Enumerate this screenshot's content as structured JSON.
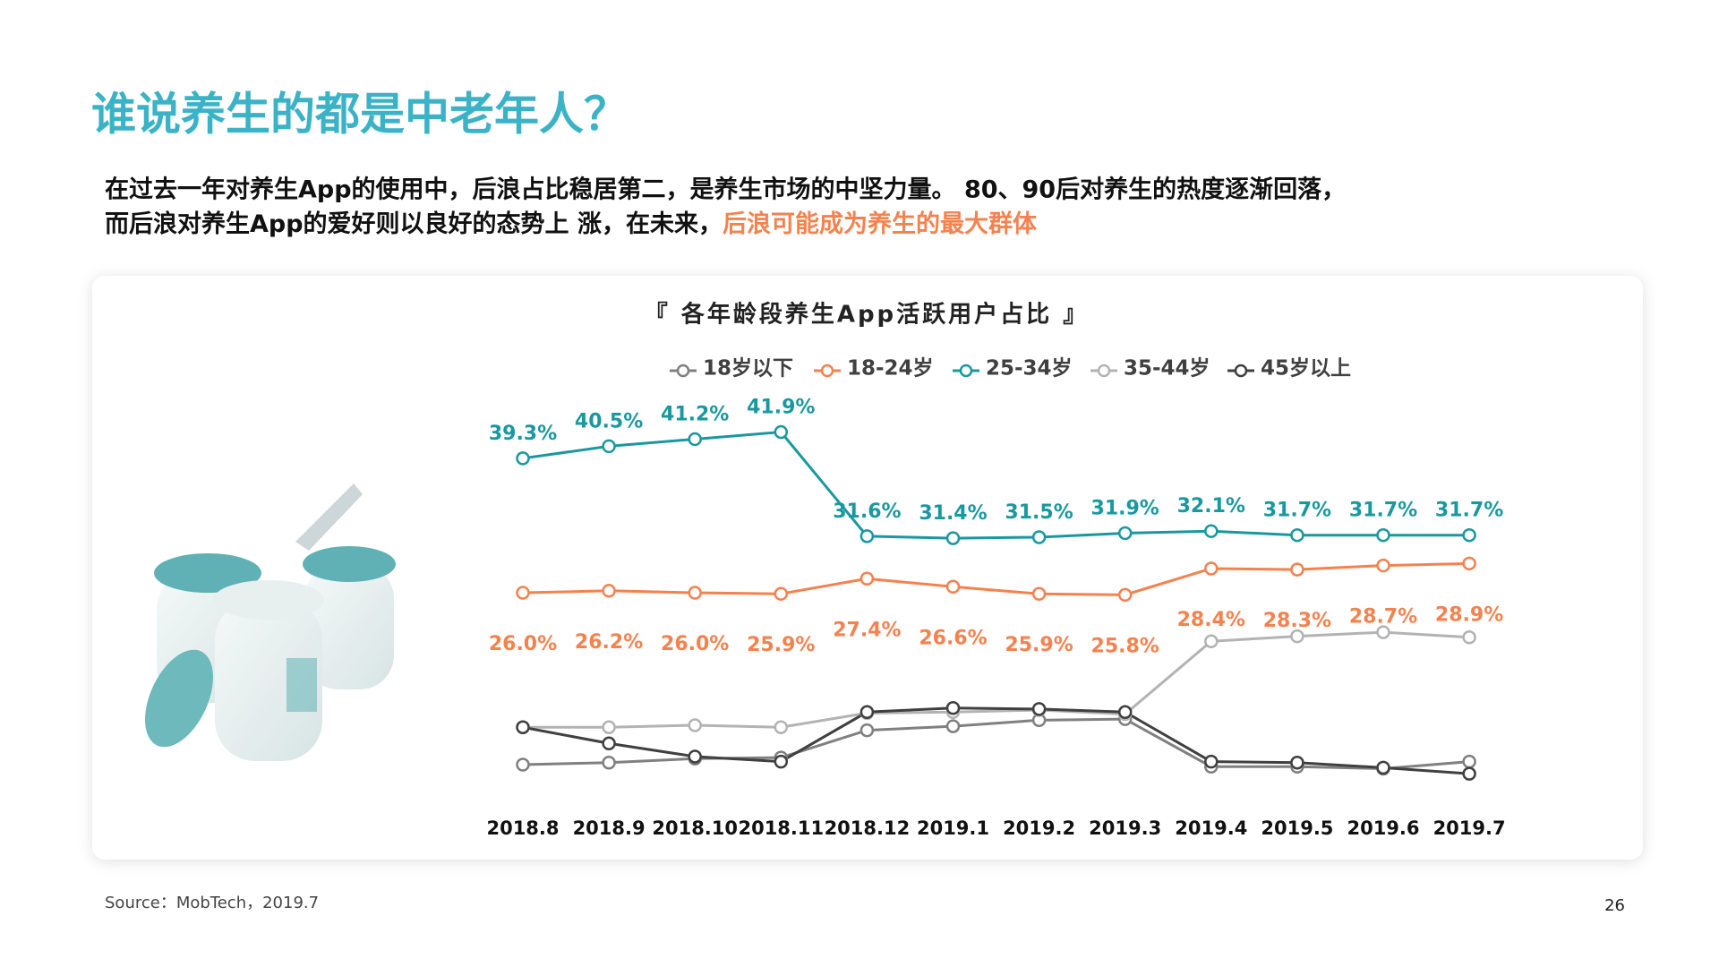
{
  "header": {
    "title": "谁说养生的都是中老年人？",
    "subtitle_line1": "在过去一年对养生App的使用中，后浪占比稳居第二，是养生市场的中坚力量。  80、90后对养生的热度逐渐回落，",
    "subtitle_line2": "而后浪对养生App的爱好则以良好的态势上 涨，在未来，",
    "subtitle_highlight": "后浪可能成为养生的最大群体"
  },
  "footer": {
    "source": "Source：MobTech，2019.7",
    "page": "26"
  },
  "chart_data": {
    "type": "line",
    "title": "『 各年龄段养生App活跃用户占比 』",
    "categories": [
      "2018.8",
      "2018.9",
      "2018.10",
      "2018.11",
      "2018.12",
      "2019.1",
      "2019.2",
      "2019.3",
      "2019.4",
      "2019.5",
      "2019.6",
      "2019.7"
    ],
    "series": [
      {
        "name": "18岁以下",
        "color": "#808080",
        "values": [
          9.0,
          9.2,
          9.6,
          9.7,
          12.4,
          12.8,
          13.4,
          13.5,
          8.8,
          8.8,
          8.6,
          9.3
        ]
      },
      {
        "name": "18-24岁",
        "color": "#f4824f",
        "label_position": "below",
        "values": [
          26.0,
          26.2,
          26.0,
          25.9,
          27.4,
          26.6,
          25.9,
          25.8,
          28.4,
          28.3,
          28.7,
          28.9
        ],
        "value_labels": [
          "26.0%",
          "26.2%",
          "26.0%",
          "25.9%",
          "27.4%",
          "26.6%",
          "25.9%",
          "25.8%",
          "28.4%",
          "28.3%",
          "28.7%",
          "28.9%"
        ]
      },
      {
        "name": "25-34岁",
        "color": "#1a98a0",
        "label_position": "above",
        "values": [
          39.3,
          40.5,
          41.2,
          41.9,
          31.6,
          31.4,
          31.5,
          31.9,
          32.1,
          31.7,
          31.7,
          31.7
        ],
        "value_labels": [
          "39.3%",
          "40.5%",
          "41.2%",
          "41.9%",
          "31.6%",
          "31.4%",
          "31.5%",
          "31.9%",
          "32.1%",
          "31.7%",
          "31.7%",
          "31.7%"
        ]
      },
      {
        "name": "35-44岁",
        "color": "#b3b3b3",
        "values": [
          12.7,
          12.7,
          12.9,
          12.7,
          14.1,
          14.2,
          14.4,
          14.0,
          21.2,
          21.7,
          22.1,
          21.6
        ]
      },
      {
        "name": "45岁以上",
        "color": "#404040",
        "values": [
          12.7,
          11.1,
          9.8,
          9.3,
          14.2,
          14.6,
          14.5,
          14.2,
          9.3,
          9.2,
          8.7,
          8.1
        ]
      }
    ]
  }
}
